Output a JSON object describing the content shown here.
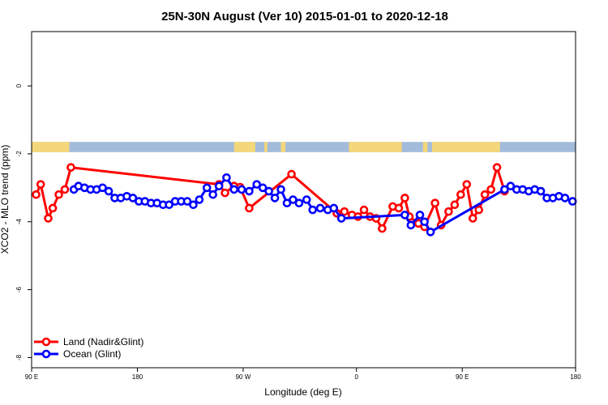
{
  "chart_data": {
    "type": "line",
    "title": "25N-30N August (Ver 10)   2015-01-01 to 2020-12-18",
    "xlabel": "Longitude (deg E)",
    "ylabel": "XCO2 - MLO trend (ppm)",
    "xlim": [
      90,
      450
    ],
    "ylim": [
      -8.3,
      1.6
    ],
    "x_ticks": [
      {
        "value": 90,
        "label": "90 E"
      },
      {
        "value": 160,
        "label": "180"
      },
      {
        "value": 230,
        "label": "90 W"
      },
      {
        "value": 305,
        "label": "0"
      },
      {
        "value": 375,
        "label": "90 E"
      },
      {
        "value": 450,
        "label": "180"
      }
    ],
    "y_ticks": [
      {
        "value": 0,
        "label": "0"
      },
      {
        "value": -2,
        "label": "-2"
      },
      {
        "value": -4,
        "label": "-4"
      },
      {
        "value": -6,
        "label": "-6"
      },
      {
        "value": -8,
        "label": "-8"
      }
    ],
    "grid": false,
    "legend_position": "bottom-left",
    "surface_band": {
      "y_top": -1.65,
      "y_bottom": -1.95,
      "ocean_color": "#a3bbdb",
      "land_color": "#f4d77a",
      "land_ranges": [
        [
          90,
          115
        ],
        [
          224,
          238
        ],
        [
          244,
          246
        ],
        [
          255,
          258
        ],
        [
          300,
          335
        ],
        [
          349,
          352
        ],
        [
          355,
          400
        ]
      ]
    },
    "series": [
      {
        "name": "Land (Nadir&Glint)",
        "color": "#ff0000",
        "x": [
          93,
          96,
          101,
          104,
          108,
          112,
          116,
          214,
          218,
          224,
          228,
          234,
          262,
          292,
          297,
          302,
          306,
          310,
          314,
          318,
          322,
          329,
          333,
          337,
          340,
          346,
          350,
          357,
          361,
          366,
          370,
          374,
          378,
          382,
          386,
          390,
          394,
          398,
          403
        ],
        "values": [
          -3.2,
          -2.9,
          -3.9,
          -3.6,
          -3.2,
          -3.05,
          -2.4,
          -2.9,
          -3.15,
          -2.95,
          -2.98,
          -3.6,
          -2.6,
          -3.75,
          -3.7,
          -3.8,
          -3.85,
          -3.65,
          -3.85,
          -3.9,
          -4.2,
          -3.55,
          -3.6,
          -3.3,
          -3.85,
          -4.05,
          -4.15,
          -3.45,
          -4.1,
          -3.7,
          -3.5,
          -3.2,
          -2.9,
          -3.9,
          -3.65,
          -3.2,
          -3.05,
          -2.4,
          -3.1
        ]
      },
      {
        "name": "Ocean (Glint)",
        "color": "#0000ff",
        "x": [
          118,
          121,
          125,
          129,
          133,
          137,
          141,
          145,
          149,
          153,
          157,
          161,
          165,
          169,
          173,
          177,
          181,
          185,
          189,
          193,
          197,
          201,
          206,
          210,
          214,
          219,
          224,
          229,
          234,
          239,
          243,
          247,
          251,
          255,
          259,
          263,
          267,
          272,
          276,
          281,
          286,
          290,
          295,
          337,
          341,
          347,
          350,
          354,
          403,
          407,
          411,
          415,
          419,
          423,
          427,
          431,
          435,
          439,
          443,
          448
        ],
        "values": [
          -3.05,
          -2.95,
          -3.0,
          -3.05,
          -3.05,
          -3.0,
          -3.1,
          -3.3,
          -3.3,
          -3.25,
          -3.3,
          -3.4,
          -3.4,
          -3.45,
          -3.45,
          -3.5,
          -3.5,
          -3.4,
          -3.4,
          -3.4,
          -3.5,
          -3.35,
          -3.0,
          -3.2,
          -2.95,
          -2.7,
          -3.05,
          -3.05,
          -3.1,
          -2.9,
          -3.0,
          -3.1,
          -3.3,
          -3.05,
          -3.45,
          -3.35,
          -3.45,
          -3.35,
          -3.65,
          -3.6,
          -3.65,
          -3.6,
          -3.9,
          -3.8,
          -4.1,
          -3.8,
          -4.0,
          -4.3,
          -3.05,
          -2.95,
          -3.05,
          -3.05,
          -3.1,
          -3.05,
          -3.1,
          -3.3,
          -3.3,
          -3.25,
          -3.3,
          -3.4
        ]
      }
    ]
  }
}
